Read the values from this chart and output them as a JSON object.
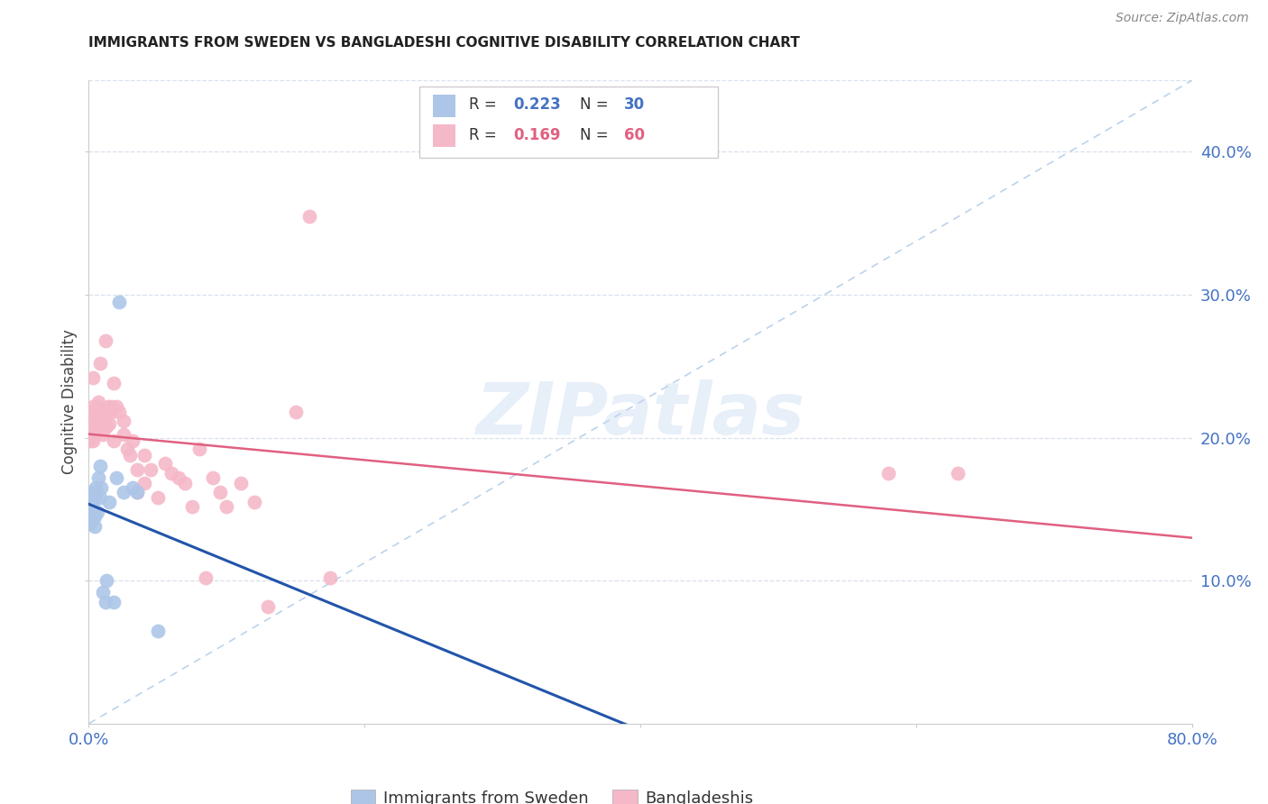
{
  "title": "IMMIGRANTS FROM SWEDEN VS BANGLADESHI COGNITIVE DISABILITY CORRELATION CHART",
  "source": "Source: ZipAtlas.com",
  "ylabel": "Cognitive Disability",
  "xlim": [
    0.0,
    0.8
  ],
  "ylim": [
    0.0,
    0.45
  ],
  "yticks": [
    0.1,
    0.2,
    0.3,
    0.4
  ],
  "ytick_labels": [
    "10.0%",
    "20.0%",
    "30.0%",
    "40.0%"
  ],
  "watermark": "ZIPatlas",
  "sweden_color": "#adc6e8",
  "bangladesh_color": "#f5b8c8",
  "sweden_line_color": "#2255aa",
  "bangladesh_line_color": "#e06080",
  "dashed_line_color": "#aac8e8",
  "axis_color": "#4472c4",
  "grid_color": "#d8e0ec",
  "background_color": "#ffffff",
  "sweden_x": [
    0.001,
    0.001,
    0.001,
    0.002,
    0.002,
    0.002,
    0.003,
    0.003,
    0.003,
    0.003,
    0.004,
    0.004,
    0.005,
    0.005,
    0.006,
    0.007,
    0.008,
    0.008,
    0.009,
    0.01,
    0.012,
    0.013,
    0.015,
    0.018,
    0.02,
    0.022,
    0.025,
    0.032,
    0.035,
    0.05
  ],
  "sweden_y": [
    0.14,
    0.145,
    0.155,
    0.148,
    0.152,
    0.158,
    0.145,
    0.148,
    0.155,
    0.162,
    0.138,
    0.145,
    0.16,
    0.165,
    0.148,
    0.172,
    0.158,
    0.18,
    0.165,
    0.092,
    0.085,
    0.1,
    0.155,
    0.085,
    0.172,
    0.295,
    0.162,
    0.165,
    0.162,
    0.065
  ],
  "bangladesh_x": [
    0.001,
    0.001,
    0.002,
    0.002,
    0.003,
    0.003,
    0.004,
    0.004,
    0.005,
    0.005,
    0.006,
    0.006,
    0.007,
    0.007,
    0.008,
    0.009,
    0.01,
    0.011,
    0.012,
    0.013,
    0.014,
    0.015,
    0.016,
    0.017,
    0.018,
    0.02,
    0.022,
    0.025,
    0.028,
    0.032,
    0.035,
    0.04,
    0.045,
    0.05,
    0.055,
    0.06,
    0.065,
    0.07,
    0.075,
    0.08,
    0.085,
    0.09,
    0.095,
    0.1,
    0.11,
    0.12,
    0.13,
    0.15,
    0.16,
    0.175,
    0.003,
    0.008,
    0.012,
    0.018,
    0.025,
    0.03,
    0.035,
    0.04,
    0.58,
    0.63
  ],
  "bangladesh_y": [
    0.198,
    0.21,
    0.202,
    0.218,
    0.198,
    0.222,
    0.208,
    0.218,
    0.202,
    0.218,
    0.212,
    0.222,
    0.215,
    0.225,
    0.212,
    0.22,
    0.202,
    0.218,
    0.215,
    0.208,
    0.222,
    0.21,
    0.218,
    0.222,
    0.198,
    0.222,
    0.218,
    0.212,
    0.192,
    0.198,
    0.162,
    0.168,
    0.178,
    0.158,
    0.182,
    0.175,
    0.172,
    0.168,
    0.152,
    0.192,
    0.102,
    0.172,
    0.162,
    0.152,
    0.168,
    0.155,
    0.082,
    0.218,
    0.355,
    0.102,
    0.242,
    0.252,
    0.268,
    0.238,
    0.202,
    0.188,
    0.178,
    0.188,
    0.175,
    0.175
  ]
}
